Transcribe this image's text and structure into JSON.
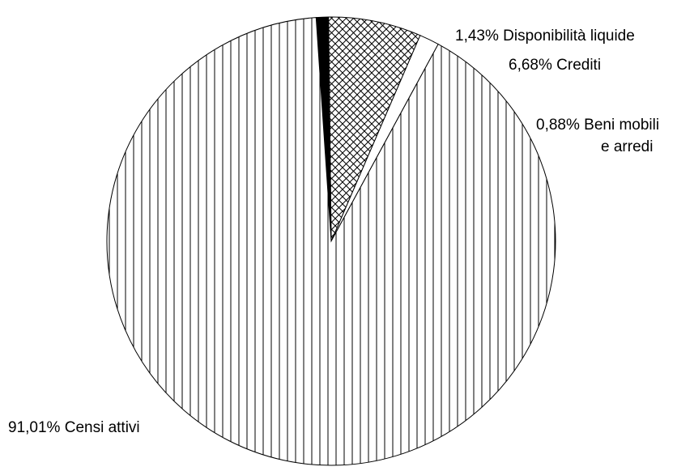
{
  "chart_data": {
    "type": "pie",
    "slices": [
      {
        "label": "Disponibilità liquide",
        "pct_text": "1,43%",
        "value": 1.43,
        "pattern": "none"
      },
      {
        "label": "Crediti",
        "pct_text": "6,68%",
        "value": 6.68,
        "pattern": "crosshatch"
      },
      {
        "label": "Beni mobili e arredi",
        "label_lines": [
          "Beni mobili",
          "e arredi"
        ],
        "pct_text": "0,88%",
        "value": 0.88,
        "pattern": "solid"
      },
      {
        "label": "Censi attivi",
        "pct_text": "91,01%",
        "value": 91.01,
        "pattern": "vertical-lines"
      }
    ],
    "colors": {
      "stroke": "#000000",
      "background": "#ffffff"
    }
  }
}
